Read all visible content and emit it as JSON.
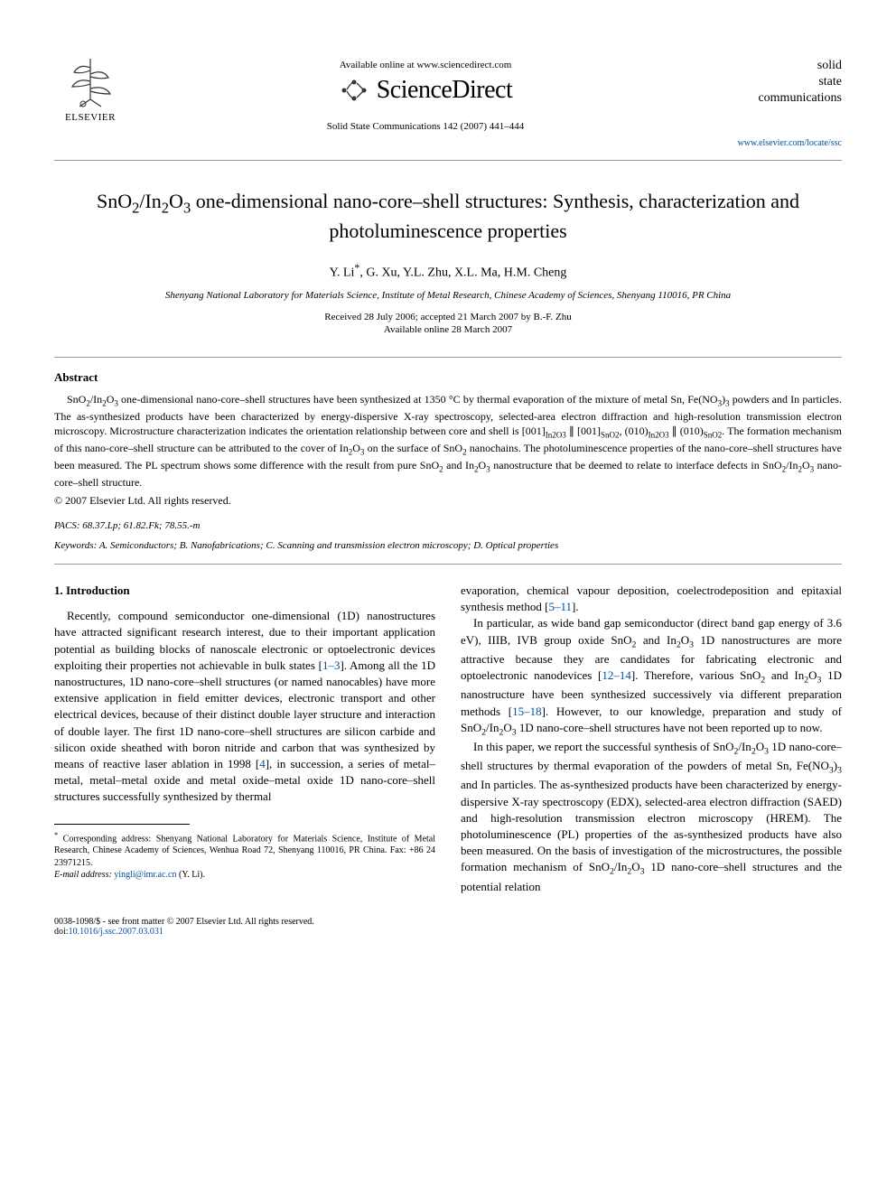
{
  "header": {
    "publisher_label": "ELSEVIER",
    "available_online_text": "Available online at www.sciencedirect.com",
    "sciencedirect_name": "ScienceDirect",
    "journal_reference": "Solid State Communications 142 (2007) 441–444",
    "journal_box": {
      "line1": "solid",
      "line2": "state",
      "line3": "communications"
    },
    "journal_url": "www.elsevier.com/locate/ssc"
  },
  "article": {
    "title_html": "SnO<sub>2</sub>/In<sub>2</sub>O<sub>3</sub> one-dimensional nano-core–shell structures: Synthesis, characterization and photoluminescence properties",
    "authors_html": "Y. Li<span class='star'>*</span>, G. Xu, Y.L. Zhu, X.L. Ma, H.M. Cheng",
    "affiliation": "Shenyang National Laboratory for Materials Science, Institute of Metal Research, Chinese Academy of Sciences, Shenyang 110016, PR China",
    "received_line": "Received 28 July 2006; accepted 21 March 2007 by B.-F. Zhu",
    "online_line": "Available online 28 March 2007"
  },
  "abstract": {
    "heading": "Abstract",
    "text_html": "SnO<sub>2</sub>/In<sub>2</sub>O<sub>3</sub> one-dimensional nano-core–shell structures have been synthesized at 1350 °C by thermal evaporation of the mixture of metal Sn, Fe(NO<sub>3</sub>)<sub>3</sub> powders and In particles. The as-synthesized products have been characterized by energy-dispersive X-ray spectroscopy, selected-area electron diffraction and high-resolution transmission electron microscopy. Microstructure characterization indicates the orientation relationship between core and shell is [001]<sub>In2O3</sub> ∥ [001]<sub>SnO2</sub>, (010)<sub>In2O3</sub> ∥ (010)<sub>SnO2</sub>. The formation mechanism of this nano-core–shell structure can be attributed to the cover of In<sub>2</sub>O<sub>3</sub> on the surface of SnO<sub>2</sub> nanochains. The photoluminescence properties of the nano-core–shell structures have been measured. The PL spectrum shows some difference with the result from pure SnO<sub>2</sub> and In<sub>2</sub>O<sub>3</sub> nanostructure that be deemed to relate to interface defects in SnO<sub>2</sub>/In<sub>2</sub>O<sub>3</sub> nano-core–shell structure.",
    "copyright": "© 2007 Elsevier Ltd. All rights reserved."
  },
  "meta": {
    "pacs_label": "PACS:",
    "pacs_values": "68.37.Lp; 61.82.Fk; 78.55.-m",
    "keywords_label": "Keywords:",
    "keywords_values": "A. Semiconductors; B. Nanofabrications; C. Scanning and transmission electron microscopy; D. Optical properties"
  },
  "body": {
    "section_heading": "1. Introduction",
    "col1_para1_html": "Recently, compound semiconductor one-dimensional (1D) nanostructures have attracted significant research interest, due to their important application potential as building blocks of nanoscale electronic or optoelectronic devices exploiting their properties not achievable in bulk states [<span class='ref-link'>1–3</span>]. Among all the 1D nanostructures, 1D nano-core–shell structures (or named nanocables) have more extensive application in field emitter devices, electronic transport and other electrical devices, because of their distinct double layer structure and interaction of double layer. The first 1D nano-core–shell structures are silicon carbide and silicon oxide sheathed with boron nitride and carbon that was synthesized by means of reactive laser ablation in 1998 [<span class='ref-link'>4</span>], in succession, a series of metal–metal, metal–metal oxide and metal oxide–metal oxide 1D nano-core–shell structures successfully synthesized by thermal",
    "col2_para1_html": "evaporation, chemical vapour deposition, coelectrodeposition and epitaxial synthesis method [<span class='ref-link'>5–11</span>].",
    "col2_para2_html": "In particular, as wide band gap semiconductor (direct band gap energy of 3.6 eV), IIIB, IVB group oxide SnO<sub>2</sub> and In<sub>2</sub>O<sub>3</sub> 1D nanostructures are more attractive because they are candidates for fabricating electronic and optoelectronic nanodevices [<span class='ref-link'>12–14</span>]. Therefore, various SnO<sub>2</sub> and In<sub>2</sub>O<sub>3</sub> 1D nanostructure have been synthesized successively via different preparation methods [<span class='ref-link'>15–18</span>]. However, to our knowledge, preparation and study of SnO<sub>2</sub>/In<sub>2</sub>O<sub>3</sub> 1D nano-core–shell structures have not been reported up to now.",
    "col2_para3_html": "In this paper, we report the successful synthesis of SnO<sub>2</sub>/In<sub>2</sub>O<sub>3</sub> 1D nano-core–shell structures by thermal evaporation of the powders of metal Sn, Fe(NO<sub>3</sub>)<sub>3</sub> and In particles. The as-synthesized products have been characterized by energy-dispersive X-ray spectroscopy (EDX), selected-area electron diffraction (SAED) and high-resolution transmission electron microscopy (HREM). The photoluminescence (PL) properties of the as-synthesized products have also been measured. On the basis of investigation of the microstructures, the possible formation mechanism of SnO<sub>2</sub>/In<sub>2</sub>O<sub>3</sub> 1D nano-core–shell structures and the potential relation"
  },
  "corresponding": {
    "note_html": "<span class='star'>*</span> Corresponding address: Shenyang National Laboratory for Materials Science, Institute of Metal Research, Chinese Academy of Sciences, Wenhua Road 72, Shenyang 110016, PR China. Fax: +86 24 23971215.",
    "email_label": "E-mail address:",
    "email_value": "yingli@imr.ac.cn",
    "email_person": "(Y. Li)."
  },
  "footer": {
    "left_line": "0038-1098/$ - see front matter © 2007 Elsevier Ltd. All rights reserved.",
    "doi_label": "doi:",
    "doi_value": "10.1016/j.ssc.2007.03.031"
  },
  "colors": {
    "link": "#0050a0",
    "rule": "#999999",
    "text": "#000000",
    "background": "#ffffff"
  }
}
